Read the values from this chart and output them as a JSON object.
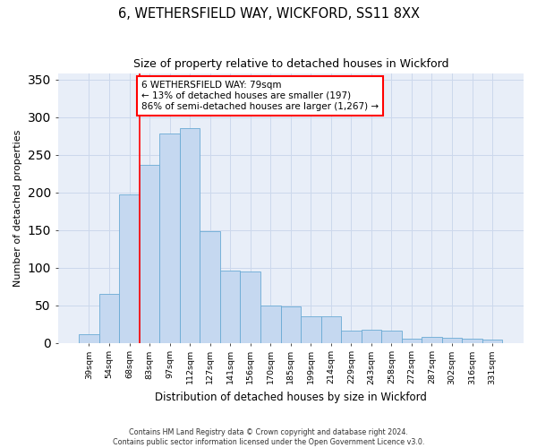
{
  "title": "6, WETHERSFIELD WAY, WICKFORD, SS11 8XX",
  "subtitle": "Size of property relative to detached houses in Wickford",
  "xlabel": "Distribution of detached houses by size in Wickford",
  "ylabel": "Number of detached properties",
  "bar_color": "#c5d8f0",
  "bar_edge_color": "#6aaad4",
  "categories": [
    "39sqm",
    "54sqm",
    "68sqm",
    "83sqm",
    "97sqm",
    "112sqm",
    "127sqm",
    "141sqm",
    "156sqm",
    "170sqm",
    "185sqm",
    "199sqm",
    "214sqm",
    "229sqm",
    "243sqm",
    "258sqm",
    "272sqm",
    "287sqm",
    "302sqm",
    "316sqm",
    "331sqm"
  ],
  "values": [
    11,
    65,
    197,
    236,
    278,
    285,
    148,
    96,
    95,
    49,
    48,
    35,
    35,
    16,
    17,
    16,
    5,
    8,
    6,
    5,
    4
  ],
  "vline_index": 2.5,
  "annotation_title": "6 WETHERSFIELD WAY: 79sqm",
  "annotation_line1": "← 13% of detached houses are smaller (197)",
  "annotation_line2": "86% of semi-detached houses are larger (1,267) →",
  "footer_line1": "Contains HM Land Registry data © Crown copyright and database right 2024.",
  "footer_line2": "Contains public sector information licensed under the Open Government Licence v3.0.",
  "grid_color": "#ccd8ec",
  "background_color": "#e8eef8",
  "ylim": [
    0,
    358
  ],
  "yticks": [
    0,
    50,
    100,
    150,
    200,
    250,
    300,
    350
  ]
}
